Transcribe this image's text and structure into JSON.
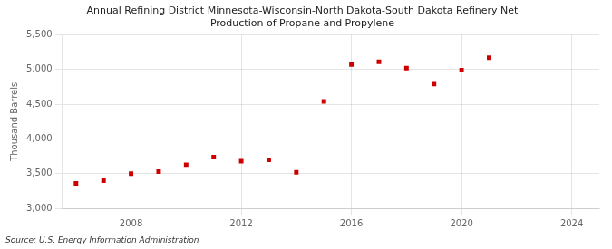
{
  "chart_data": {
    "type": "scatter",
    "title": "Annual Refining District Minnesota-Wisconsin-North Dakota-South Dakota Refinery Net\nProduction of Propane and Propylene",
    "ylabel": "Thousand Barrels",
    "source": "Source: U.S. Energy Information Administration",
    "x": [
      2006,
      2007,
      2008,
      2009,
      2010,
      2011,
      2012,
      2013,
      2014,
      2015,
      2016,
      2017,
      2018,
      2019,
      2020,
      2021
    ],
    "values": [
      3360,
      3400,
      3500,
      3530,
      3630,
      3740,
      3680,
      3700,
      3520,
      4540,
      5070,
      5110,
      5020,
      4790,
      4990,
      5170
    ],
    "color": "#cc0000",
    "marker": "square",
    "xlim": [
      2005.5,
      2025
    ],
    "xticks": [
      2008,
      2012,
      2016,
      2020,
      2024
    ],
    "ylim": [
      3000,
      5500
    ],
    "yticks": [
      {
        "value": 3000,
        "label": "3,000"
      },
      {
        "value": 3500,
        "label": "3,500"
      },
      {
        "value": 4000,
        "label": "4,000"
      },
      {
        "value": 4500,
        "label": "4,500"
      },
      {
        "value": 5000,
        "label": "5,000"
      },
      {
        "value": 5500,
        "label": "5,500"
      }
    ],
    "grid": true
  }
}
